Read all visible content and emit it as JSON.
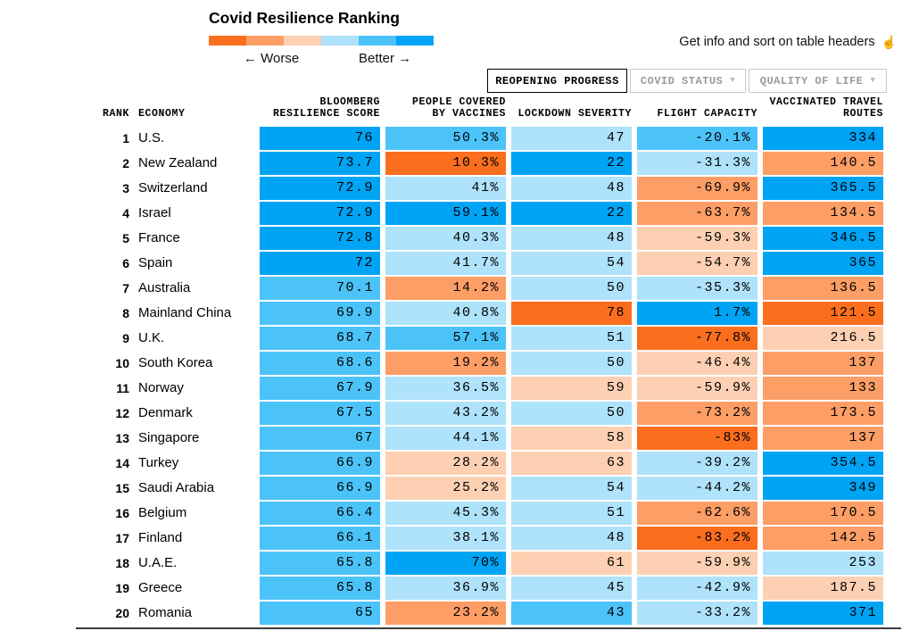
{
  "title": "Covid Resilience Ranking",
  "legend": {
    "colors": [
      "#FB6E1E",
      "#FC9E66",
      "#FDD0B3",
      "#AFE2FB",
      "#4CC3F8",
      "#00A4F5"
    ],
    "worse_label": "← Worse",
    "better_label": "Better →"
  },
  "hint": {
    "text": "Get info and sort on table headers",
    "glyph": "☝"
  },
  "tabs": [
    {
      "label": "REOPENING PROGRESS",
      "active": true
    },
    {
      "label": "COVID STATUS",
      "active": false,
      "glyph": "▼"
    },
    {
      "label": "QUALITY OF LIFE",
      "active": false,
      "glyph": "▼"
    }
  ],
  "table": {
    "headers": {
      "rank": "RANK",
      "economy": "ECONOMY",
      "score_line1": "BLOOMBERG",
      "score_line2": "RESILIENCE SCORE",
      "vaccines_line1": "PEOPLE COVERED",
      "vaccines_line2": "BY VACCINES",
      "lockdown": "LOCKDOWN SEVERITY",
      "flight": "FLIGHT CAPACITY",
      "routes_line1": "VACCINATED TRAVEL",
      "routes_line2": "ROUTES"
    },
    "palette": {
      "b3": "#00A4F5",
      "b2": "#4CC3F8",
      "b1": "#AFE2FB",
      "o1": "#FDD0B3",
      "o2": "#FC9E66",
      "o3": "#FB6E1E"
    },
    "rows": [
      {
        "rank": "1",
        "economy": "U.S.",
        "score": [
          "76",
          "b3"
        ],
        "vaccines": [
          "50.3%",
          "b2"
        ],
        "lockdown": [
          "47",
          "b1"
        ],
        "flight": [
          "-20.1%",
          "b2"
        ],
        "routes": [
          "334",
          "b3"
        ]
      },
      {
        "rank": "2",
        "economy": "New Zealand",
        "score": [
          "73.7",
          "b3"
        ],
        "vaccines": [
          "10.3%",
          "o3"
        ],
        "lockdown": [
          "22",
          "b3"
        ],
        "flight": [
          "-31.3%",
          "b1"
        ],
        "routes": [
          "140.5",
          "o2"
        ]
      },
      {
        "rank": "3",
        "economy": "Switzerland",
        "score": [
          "72.9",
          "b3"
        ],
        "vaccines": [
          "41%",
          "b1"
        ],
        "lockdown": [
          "48",
          "b1"
        ],
        "flight": [
          "-69.9%",
          "o2"
        ],
        "routes": [
          "365.5",
          "b3"
        ]
      },
      {
        "rank": "4",
        "economy": "Israel",
        "score": [
          "72.9",
          "b3"
        ],
        "vaccines": [
          "59.1%",
          "b3"
        ],
        "lockdown": [
          "22",
          "b3"
        ],
        "flight": [
          "-63.7%",
          "o2"
        ],
        "routes": [
          "134.5",
          "o2"
        ]
      },
      {
        "rank": "5",
        "economy": "France",
        "score": [
          "72.8",
          "b3"
        ],
        "vaccines": [
          "40.3%",
          "b1"
        ],
        "lockdown": [
          "48",
          "b1"
        ],
        "flight": [
          "-59.3%",
          "o1"
        ],
        "routes": [
          "346.5",
          "b3"
        ]
      },
      {
        "rank": "6",
        "economy": "Spain",
        "score": [
          "72",
          "b3"
        ],
        "vaccines": [
          "41.7%",
          "b1"
        ],
        "lockdown": [
          "54",
          "b1"
        ],
        "flight": [
          "-54.7%",
          "o1"
        ],
        "routes": [
          "365",
          "b3"
        ]
      },
      {
        "rank": "7",
        "economy": "Australia",
        "score": [
          "70.1",
          "b2"
        ],
        "vaccines": [
          "14.2%",
          "o2"
        ],
        "lockdown": [
          "50",
          "b1"
        ],
        "flight": [
          "-35.3%",
          "b1"
        ],
        "routes": [
          "136.5",
          "o2"
        ]
      },
      {
        "rank": "8",
        "economy": "Mainland China",
        "score": [
          "69.9",
          "b2"
        ],
        "vaccines": [
          "40.8%",
          "b1"
        ],
        "lockdown": [
          "78",
          "o3"
        ],
        "flight": [
          "1.7%",
          "b3"
        ],
        "routes": [
          "121.5",
          "o3"
        ]
      },
      {
        "rank": "9",
        "economy": "U.K.",
        "score": [
          "68.7",
          "b2"
        ],
        "vaccines": [
          "57.1%",
          "b2"
        ],
        "lockdown": [
          "51",
          "b1"
        ],
        "flight": [
          "-77.8%",
          "o3"
        ],
        "routes": [
          "216.5",
          "o1"
        ]
      },
      {
        "rank": "10",
        "economy": "South Korea",
        "score": [
          "68.6",
          "b2"
        ],
        "vaccines": [
          "19.2%",
          "o2"
        ],
        "lockdown": [
          "50",
          "b1"
        ],
        "flight": [
          "-46.4%",
          "o1"
        ],
        "routes": [
          "137",
          "o2"
        ]
      },
      {
        "rank": "11",
        "economy": "Norway",
        "score": [
          "67.9",
          "b2"
        ],
        "vaccines": [
          "36.5%",
          "b1"
        ],
        "lockdown": [
          "59",
          "o1"
        ],
        "flight": [
          "-59.9%",
          "o1"
        ],
        "routes": [
          "133",
          "o2"
        ]
      },
      {
        "rank": "12",
        "economy": "Denmark",
        "score": [
          "67.5",
          "b2"
        ],
        "vaccines": [
          "43.2%",
          "b1"
        ],
        "lockdown": [
          "50",
          "b1"
        ],
        "flight": [
          "-73.2%",
          "o2"
        ],
        "routes": [
          "173.5",
          "o2"
        ]
      },
      {
        "rank": "13",
        "economy": "Singapore",
        "score": [
          "67",
          "b2"
        ],
        "vaccines": [
          "44.1%",
          "b1"
        ],
        "lockdown": [
          "58",
          "o1"
        ],
        "flight": [
          "-83%",
          "o3"
        ],
        "routes": [
          "137",
          "o2"
        ]
      },
      {
        "rank": "14",
        "economy": "Turkey",
        "score": [
          "66.9",
          "b2"
        ],
        "vaccines": [
          "28.2%",
          "o1"
        ],
        "lockdown": [
          "63",
          "o1"
        ],
        "flight": [
          "-39.2%",
          "b1"
        ],
        "routes": [
          "354.5",
          "b3"
        ]
      },
      {
        "rank": "15",
        "economy": "Saudi Arabia",
        "score": [
          "66.9",
          "b2"
        ],
        "vaccines": [
          "25.2%",
          "o1"
        ],
        "lockdown": [
          "54",
          "b1"
        ],
        "flight": [
          "-44.2%",
          "b1"
        ],
        "routes": [
          "349",
          "b3"
        ]
      },
      {
        "rank": "16",
        "economy": "Belgium",
        "score": [
          "66.4",
          "b2"
        ],
        "vaccines": [
          "45.3%",
          "b1"
        ],
        "lockdown": [
          "51",
          "b1"
        ],
        "flight": [
          "-62.6%",
          "o2"
        ],
        "routes": [
          "170.5",
          "o2"
        ]
      },
      {
        "rank": "17",
        "economy": "Finland",
        "score": [
          "66.1",
          "b2"
        ],
        "vaccines": [
          "38.1%",
          "b1"
        ],
        "lockdown": [
          "48",
          "b1"
        ],
        "flight": [
          "-83.2%",
          "o3"
        ],
        "routes": [
          "142.5",
          "o2"
        ]
      },
      {
        "rank": "18",
        "economy": "U.A.E.",
        "score": [
          "65.8",
          "b2"
        ],
        "vaccines": [
          "70%",
          "b3"
        ],
        "lockdown": [
          "61",
          "o1"
        ],
        "flight": [
          "-59.9%",
          "o1"
        ],
        "routes": [
          "253",
          "b1"
        ]
      },
      {
        "rank": "19",
        "economy": "Greece",
        "score": [
          "65.8",
          "b2"
        ],
        "vaccines": [
          "36.9%",
          "b1"
        ],
        "lockdown": [
          "45",
          "b1"
        ],
        "flight": [
          "-42.9%",
          "b1"
        ],
        "routes": [
          "187.5",
          "o1"
        ]
      },
      {
        "rank": "20",
        "economy": "Romania",
        "score": [
          "65",
          "b2"
        ],
        "vaccines": [
          "23.2%",
          "o2"
        ],
        "lockdown": [
          "43",
          "b2"
        ],
        "flight": [
          "-33.2%",
          "b1"
        ],
        "routes": [
          "371",
          "b3"
        ]
      }
    ]
  },
  "chart_data": {
    "type": "table",
    "title": "Covid Resilience Ranking",
    "active_view": "Reopening Progress",
    "color_scale": {
      "worse": "#FB6E1E",
      "better": "#00A4F5"
    },
    "columns": [
      "Rank",
      "Economy",
      "Bloomberg Resilience Score",
      "People Covered by Vaccines",
      "Lockdown Severity",
      "Flight Capacity",
      "Vaccinated Travel Routes"
    ],
    "rows": [
      [
        1,
        "U.S.",
        76,
        "50.3%",
        47,
        "-20.1%",
        334
      ],
      [
        2,
        "New Zealand",
        73.7,
        "10.3%",
        22,
        "-31.3%",
        140.5
      ],
      [
        3,
        "Switzerland",
        72.9,
        "41%",
        48,
        "-69.9%",
        365.5
      ],
      [
        4,
        "Israel",
        72.9,
        "59.1%",
        22,
        "-63.7%",
        134.5
      ],
      [
        5,
        "France",
        72.8,
        "40.3%",
        48,
        "-59.3%",
        346.5
      ],
      [
        6,
        "Spain",
        72,
        "41.7%",
        54,
        "-54.7%",
        365
      ],
      [
        7,
        "Australia",
        70.1,
        "14.2%",
        50,
        "-35.3%",
        136.5
      ],
      [
        8,
        "Mainland China",
        69.9,
        "40.8%",
        78,
        "1.7%",
        121.5
      ],
      [
        9,
        "U.K.",
        68.7,
        "57.1%",
        51,
        "-77.8%",
        216.5
      ],
      [
        10,
        "South Korea",
        68.6,
        "19.2%",
        50,
        "-46.4%",
        137
      ],
      [
        11,
        "Norway",
        67.9,
        "36.5%",
        59,
        "-59.9%",
        133
      ],
      [
        12,
        "Denmark",
        67.5,
        "43.2%",
        50,
        "-73.2%",
        173.5
      ],
      [
        13,
        "Singapore",
        67,
        "44.1%",
        58,
        "-83%",
        137
      ],
      [
        14,
        "Turkey",
        66.9,
        "28.2%",
        63,
        "-39.2%",
        354.5
      ],
      [
        15,
        "Saudi Arabia",
        66.9,
        "25.2%",
        54,
        "-44.2%",
        349
      ],
      [
        16,
        "Belgium",
        66.4,
        "45.3%",
        51,
        "-62.6%",
        170.5
      ],
      [
        17,
        "Finland",
        66.1,
        "38.1%",
        48,
        "-83.2%",
        142.5
      ],
      [
        18,
        "U.A.E.",
        65.8,
        "70%",
        61,
        "-59.9%",
        253
      ],
      [
        19,
        "Greece",
        65.8,
        "36.9%",
        45,
        "-42.9%",
        187.5
      ],
      [
        20,
        "Romania",
        65,
        "23.2%",
        43,
        "-33.2%",
        371
      ]
    ]
  }
}
